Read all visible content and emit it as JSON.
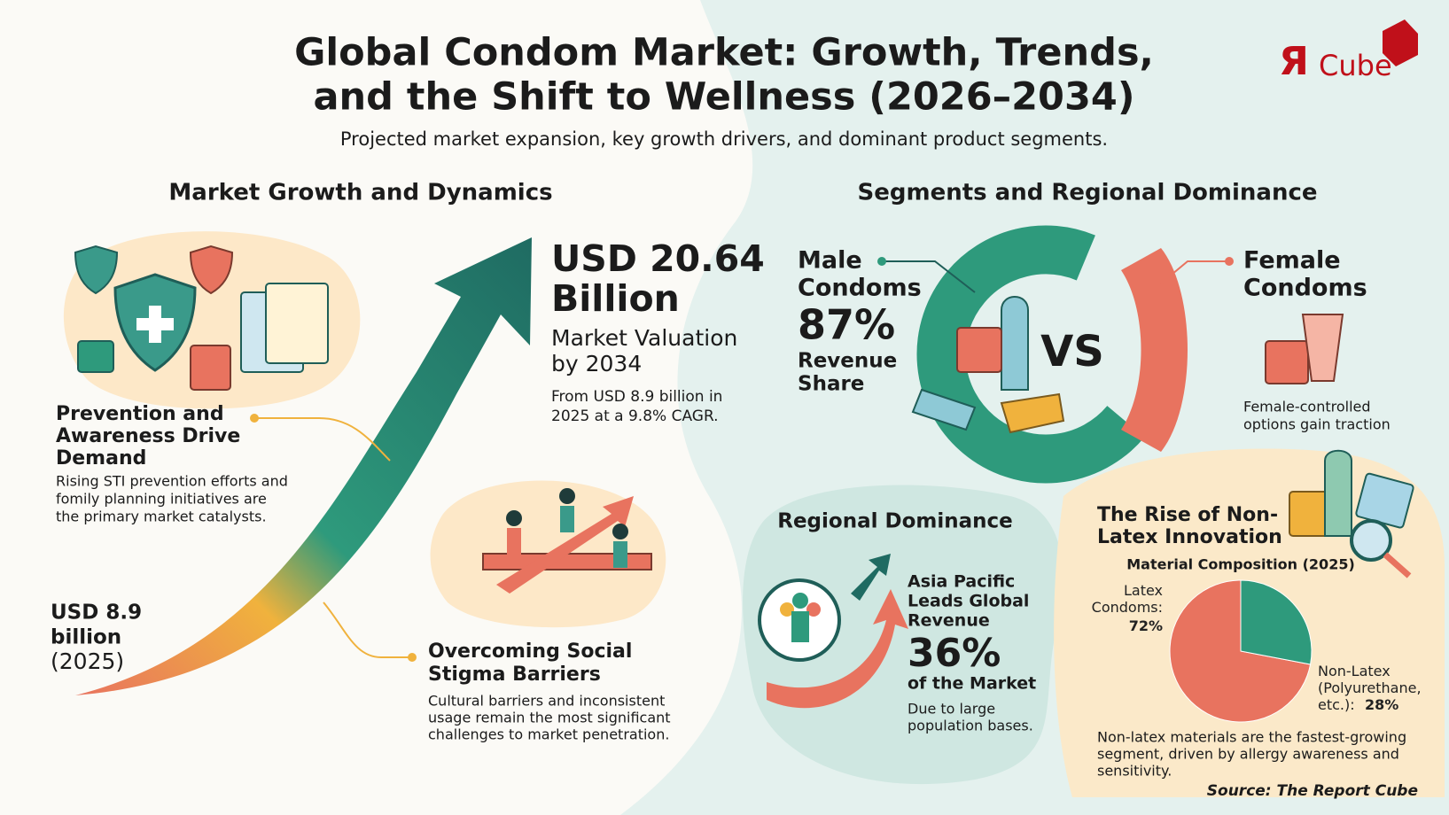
{
  "header": {
    "title_lines": [
      "Global Condom Market: Growth, Trends,",
      "and the Shift to Wellness (2026–2034)"
    ],
    "subtitle": "Projected market expansion, key growth drivers, and dominant product segments.",
    "logo": {
      "mark": "Я",
      "text": "Cube"
    }
  },
  "left": {
    "heading": "Market Growth and Dynamics",
    "end_value": {
      "lines": [
        "USD 20.64",
        "Billion"
      ],
      "label_lines": [
        "Market Valuation",
        "by 2034"
      ],
      "note_lines": [
        "From USD 8.9 billion in",
        "2025 at a 9.8% CAGR."
      ]
    },
    "start_value": {
      "lines": [
        "USD 8.9",
        "billion"
      ],
      "year": "(2025)"
    },
    "driver": {
      "title_lines": [
        "Prevention and",
        "Awareness Drive",
        "Demand"
      ],
      "text_lines": [
        "Rising STI prevention efforts and",
        "fomily planning initiatives are",
        "the primary market catalysts."
      ]
    },
    "barrier": {
      "title_lines": [
        "Overcoming Social",
        "Stigma Barriers"
      ],
      "text_lines": [
        "Cultural barriers and inconsistent",
        "usage remain the most significant",
        "challenges to market penetration."
      ]
    }
  },
  "right": {
    "heading": "Segments and Regional Dominance",
    "male": {
      "title_lines": [
        "Male",
        "Condoms"
      ],
      "value": "87%",
      "label_lines": [
        "Revenue",
        "Share"
      ]
    },
    "vs": "VS",
    "female": {
      "title_lines": [
        "Female",
        "Condoms"
      ],
      "note_lines": [
        "Female-controlled",
        "options gain traction"
      ]
    },
    "regional": {
      "heading": "Regional Dominance",
      "title_lines": [
        "Asia Pacific",
        "Leads Global",
        "Revenue"
      ],
      "value": "36%",
      "value_note": "of the Market",
      "note_lines": [
        "Due to large",
        "population bases."
      ]
    },
    "non_latex": {
      "title_lines": [
        "The Rise of Non-",
        "Latex Innovation"
      ],
      "chart": {
        "type": "pie",
        "title": "Material Composition (2025)",
        "categories": [
          "Latex Condoms:",
          "Non-Latex (Polyurethane, etc.):"
        ],
        "values": [
          72,
          28
        ],
        "value_labels": [
          "72%",
          "28%"
        ],
        "colors": [
          "#e8735f",
          "#2e9a7c"
        ]
      },
      "note_lines": [
        "Non-latex materials are the fastest-growing",
        "segment, driven by allergy awareness and",
        "sensitivity."
      ]
    }
  },
  "source": "Source: The Report Cube"
}
